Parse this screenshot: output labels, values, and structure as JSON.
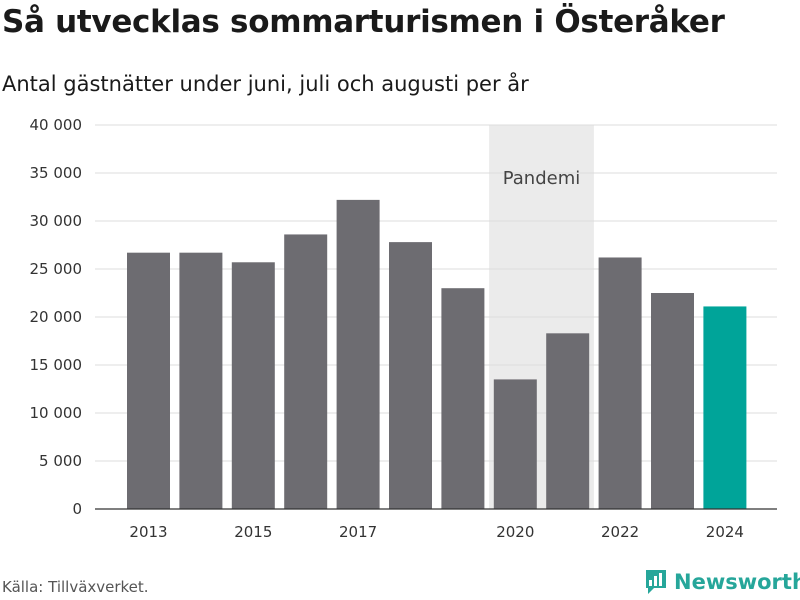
{
  "title": "Så utvecklas sommarturismen i Österåker",
  "subtitle": "Antal gästnätter under juni, juli och augusti per år",
  "source": "Källa: Tillväxverket.",
  "brand": {
    "name": "Newsworthy",
    "color": "#26a69a",
    "icon": "newsworthy-chart-icon"
  },
  "chart_data": {
    "type": "bar",
    "title": "Så utvecklas sommarturismen i Österåker",
    "subtitle": "Antal gästnätter under juni, juli och augusti per år",
    "categories": [
      2013,
      2014,
      2015,
      2016,
      2017,
      2018,
      2019,
      2020,
      2021,
      2022,
      2023,
      2024
    ],
    "values": [
      26700,
      26700,
      25700,
      28600,
      32200,
      27800,
      23000,
      13500,
      18300,
      26200,
      22500,
      21100
    ],
    "x_tick_labels": [
      "2013",
      "2015",
      "2017",
      "2020",
      "2022",
      "2024"
    ],
    "y_tick_labels": [
      "0",
      "5 000",
      "10 000",
      "15 000",
      "20 000",
      "25 000",
      "30 000",
      "35 000",
      "40 000"
    ],
    "ylim": [
      0,
      40000
    ],
    "grid": true,
    "bar_color": "#6d6c71",
    "highlight": {
      "category": 2024,
      "color": "#00a499"
    },
    "shaded_region": {
      "from": 2019.5,
      "to": 2021.5,
      "label": "Pandemi",
      "color": "#ebebeb"
    }
  }
}
